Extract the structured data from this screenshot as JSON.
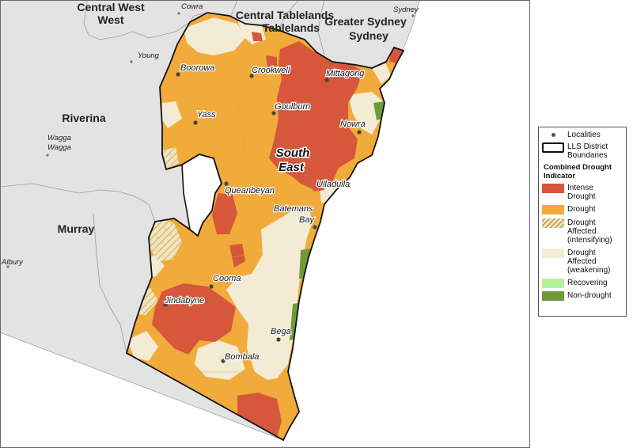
{
  "map": {
    "neighbour_regions": [
      "Central West",
      "Central Tablelands",
      "Greater Sydney",
      "Riverina",
      "Murray"
    ],
    "district_name": "South East",
    "district_name_line1": "South",
    "district_name_line2": "East",
    "towns_outside": [
      "Cowra",
      "Sydney",
      "Young",
      "Wagga",
      "Wagga",
      "Albury"
    ],
    "localities": [
      "Boorowa",
      "Crookwell",
      "Mittagong",
      "Yass",
      "Goulburn",
      "Nowra",
      "Queanbeyan",
      "Ulladulla",
      "Batemans",
      "Bay",
      "Cooma",
      "Jindabyne",
      "Bega",
      "Bombala"
    ]
  },
  "legend": {
    "localities": "Localities",
    "boundaries_line1": "LLS District",
    "boundaries_line2": "Boundaries",
    "title_line1": "Combined Drought",
    "title_line2": "Indicator",
    "categories": [
      {
        "label_line1": "Intense",
        "label_line2": "Drought",
        "label_line3": "",
        "color": "#d6573c"
      },
      {
        "label_line1": "Drought",
        "label_line2": "",
        "label_line3": "",
        "color": "#f0ab3b"
      },
      {
        "label_line1": "Drought",
        "label_line2": "Affected",
        "label_line3": "(intensifying)",
        "color": "#f4e4bc"
      },
      {
        "label_line1": "Drought",
        "label_line2": "Affected",
        "label_line3": "(weakening)",
        "color": "#f3ebd3"
      },
      {
        "label_line1": "Recovering",
        "label_line2": "",
        "label_line3": "",
        "color": "#b5f19a"
      },
      {
        "label_line1": "Non-drought",
        "label_line2": "",
        "label_line3": "",
        "color": "#6f9a3a"
      }
    ]
  }
}
